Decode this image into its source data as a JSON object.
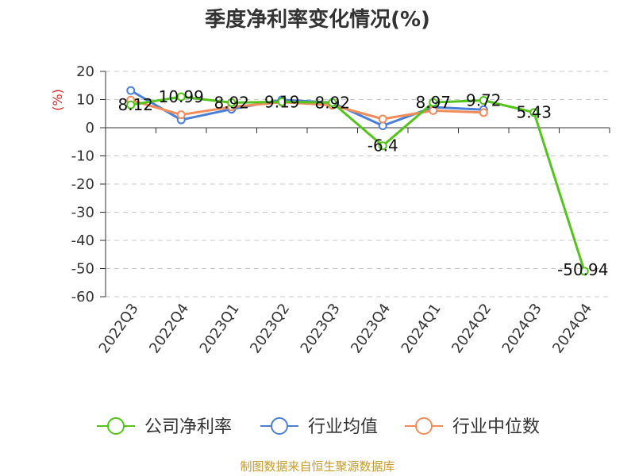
{
  "chart_data": {
    "type": "line",
    "title": "季度净利率变化情况(%)",
    "ylabel": "(%)",
    "xlabel": "",
    "ylim": [
      -60,
      20
    ],
    "yticks": [
      20,
      10,
      0,
      -10,
      -20,
      -30,
      -40,
      -50,
      -60
    ],
    "categories": [
      "2022Q3",
      "2022Q4",
      "2023Q1",
      "2023Q2",
      "2023Q3",
      "2023Q4",
      "2024Q1",
      "2024Q2",
      "2024Q3",
      "2024Q4"
    ],
    "grid": true,
    "legend_position": "bottom",
    "series": [
      {
        "name": "公司净利率",
        "color": "#52c41a",
        "values": [
          8.12,
          10.99,
          8.92,
          9.19,
          8.92,
          -6.4,
          8.97,
          9.72,
          5.43,
          -50.94
        ],
        "labels": [
          "8.12",
          "10.99",
          "8.92",
          "9.19",
          "8.92",
          "-6.4",
          "8.97",
          "9.72",
          "5.43",
          "-50.94"
        ]
      },
      {
        "name": "行业均值",
        "color": "#4a7fd8",
        "values": [
          13.2,
          2.8,
          6.6,
          9.9,
          8.9,
          0.7,
          7.3,
          6.4,
          null,
          null
        ]
      },
      {
        "name": "行业中位数",
        "color": "#f28c5a",
        "values": [
          9.8,
          4.6,
          7.4,
          9.1,
          8.0,
          3.1,
          6.1,
          5.4,
          null,
          null
        ]
      }
    ]
  },
  "source": "制图数据来自恒生聚源数据库"
}
